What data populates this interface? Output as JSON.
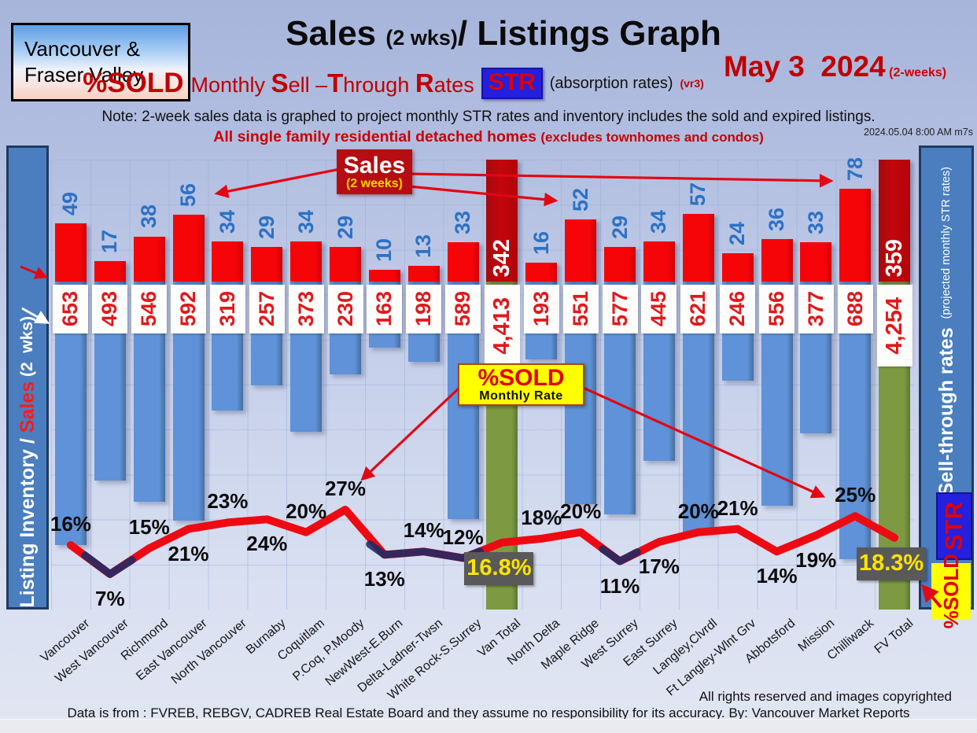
{
  "logo": {
    "line1": "Vancouver &",
    "line2": "Fraser Valley"
  },
  "title": {
    "sales": "Sales ",
    "wks": "(2 wks)",
    "rest": "/ Listings Graph"
  },
  "date": {
    "main": "May 3  2024",
    "suffix": " (2-weeks)"
  },
  "subtitle": {
    "psold": "%SOLD",
    "seg1": "Monthly ",
    "s": "S",
    "seg2": "ell –",
    "t": "T",
    "seg3": "hrough ",
    "r": "R",
    "seg4": "ates",
    "str_badge": "STR",
    "absorption": "(absorption rates)",
    "vr": "(vr3)"
  },
  "note": "Note: 2-week sales data is graphed to project monthly STR rates and inventory includes the sold and expired listings.",
  "scope_line": {
    "main": "All single family residential detached homes ",
    "paren": "(excludes townhomes and condos)"
  },
  "timestamp": "2024.05.04 8:00 AM m7s",
  "left_sidebar": {
    "part1": "Listing Inventory / ",
    "part2": "Sales",
    "part3": " (2  wks)"
  },
  "right_sidebar": {
    "main": "Sell-through rates ",
    "paren": " (projected monthly STR rates)",
    "str_badge": "STR",
    "psold_badge": "%SOLD"
  },
  "callouts": {
    "sales": {
      "title": "Sales",
      "sub": "(2 weeks)"
    },
    "psold": {
      "title": "%SOLD",
      "sub": "Monthly Rate"
    }
  },
  "footer": {
    "rights": "All rights reserved and  images copyrighted",
    "source": "Data is from : FVREB, REBGV, CADREB Real Estate Board and they assume no responsibility for its accuracy. By: Vancouver Market Reports"
  },
  "colors": {
    "sales_bar": "#f50508",
    "sales_total_bar": "#b5070c",
    "inventory_bar": "#5f92d8",
    "total_inventory_bar": "#7d9a42",
    "str_line": "#ee0a12",
    "str_line_dip": "#1b2a66",
    "sales_value_text": "#2c72c4",
    "inventory_value_text": "#e0191d",
    "accent_red": "#c00000",
    "badge_blue": "#2420dd",
    "badge_yellow": "#ffff00",
    "gray_box": "#595959",
    "gray_box_text": "#ffe400"
  },
  "chart_data": {
    "type": "bar+line",
    "title": "Sales (2 wks)/ Listings Graph",
    "subtitle": "%SOLD Monthly Sell –Through Rates STR (absorption rates)",
    "date": "May 3 2024",
    "categories": [
      "Vancouver",
      "West Vancouver",
      "Richmond",
      "East Vancouver",
      "North Vancouver",
      "Burnaby",
      "Coquitlam",
      "P.Coq, P.Moody",
      "NewWest-E.Burn",
      "Delta-Ladner-Twsn",
      "White Rock-S.Surrey",
      "Van Total",
      "North Delta",
      "Maple Ridge",
      "West Surrey",
      "East Surrey",
      "Langley,Clvrdl",
      "Ft Langley-Wlnt Grv",
      "Abbotsford",
      "Mission",
      "Chilliwack",
      "FV Total"
    ],
    "is_total": [
      0,
      0,
      0,
      0,
      0,
      0,
      0,
      0,
      0,
      0,
      0,
      1,
      0,
      0,
      0,
      0,
      0,
      0,
      0,
      0,
      0,
      1
    ],
    "series": [
      {
        "name": "Sales (2 weeks)",
        "type": "bar",
        "values": [
          49,
          17,
          38,
          56,
          34,
          29,
          34,
          29,
          10,
          13,
          33,
          342,
          16,
          52,
          29,
          34,
          57,
          24,
          36,
          33,
          78,
          359
        ]
      },
      {
        "name": "Listing Inventory",
        "type": "bar",
        "values": [
          653,
          493,
          546,
          592,
          319,
          257,
          373,
          230,
          163,
          198,
          589,
          4413,
          193,
          551,
          577,
          445,
          621,
          246,
          556,
          377,
          688,
          4254
        ],
        "labels": [
          "653",
          "493",
          "546",
          "592",
          "319",
          "257",
          "373",
          "230",
          "163",
          "198",
          "589",
          "4,413",
          "193",
          "551",
          "577",
          "445",
          "621",
          "246",
          "556",
          "377",
          "688",
          "4,254"
        ]
      },
      {
        "name": "%SOLD Monthly Rate",
        "type": "line",
        "values": [
          16,
          7,
          15,
          21,
          23,
          24,
          20,
          27,
          13,
          14,
          12,
          16.8,
          18,
          20,
          11,
          17,
          20,
          21,
          14,
          19,
          25,
          18.3
        ],
        "labels": [
          "16%",
          "7%",
          "15%",
          "21%",
          "23%",
          "24%",
          "20%",
          "27%",
          "13%",
          "14%",
          "12%",
          "16.8%",
          "18%",
          "20%",
          "11%",
          "17%",
          "20%",
          "21%",
          "14%",
          "19%",
          "25%",
          "18.3%"
        ],
        "label_pos": [
          "above",
          "below",
          "above",
          "below",
          "above",
          "below",
          "above",
          "above",
          "below",
          "above",
          "above",
          "box",
          "above",
          "above",
          "below",
          "below",
          "above",
          "above",
          "below",
          "below",
          "above",
          "box"
        ]
      }
    ],
    "ylabel_left": "Listing Inventory / Sales (2 wks)",
    "ylabel_right": "Sell-through rates (projected monthly STR rates)",
    "legend_position": "none",
    "grid": true
  }
}
